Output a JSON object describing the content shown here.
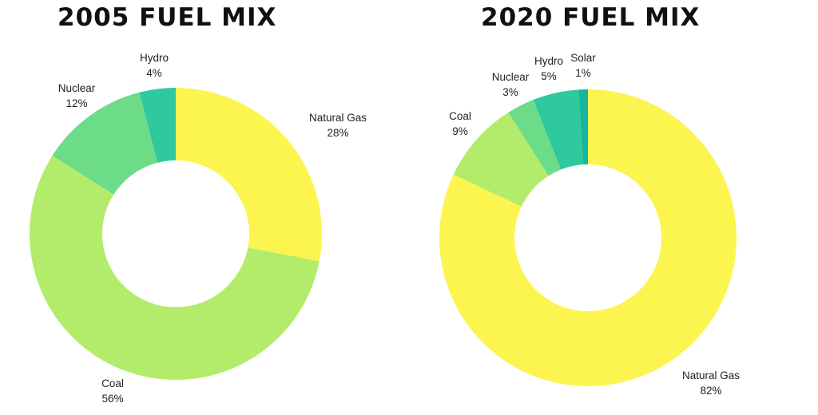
{
  "chart_data": [
    {
      "type": "pie",
      "title": "2005 FUEL MIX",
      "categories": [
        "Natural Gas",
        "Coal",
        "Nuclear",
        "Hydro"
      ],
      "values": [
        28,
        56,
        12,
        4
      ],
      "value_labels": [
        "28%",
        "56%",
        "12%",
        "4%"
      ],
      "colors": [
        "#fdf54f",
        "#b3ec6b",
        "#6cdc88",
        "#2ec99c"
      ]
    },
    {
      "type": "pie",
      "title": "2020 FUEL MIX",
      "categories": [
        "Natural Gas",
        "Coal",
        "Nuclear",
        "Hydro",
        "Solar"
      ],
      "values": [
        82,
        9,
        3,
        5,
        1
      ],
      "value_labels": [
        "82%",
        "9%",
        "3%",
        "5%",
        "1%"
      ],
      "colors": [
        "#fdf54f",
        "#b3ec6b",
        "#6cdc88",
        "#2ec99c",
        "#16b5a0"
      ]
    }
  ]
}
